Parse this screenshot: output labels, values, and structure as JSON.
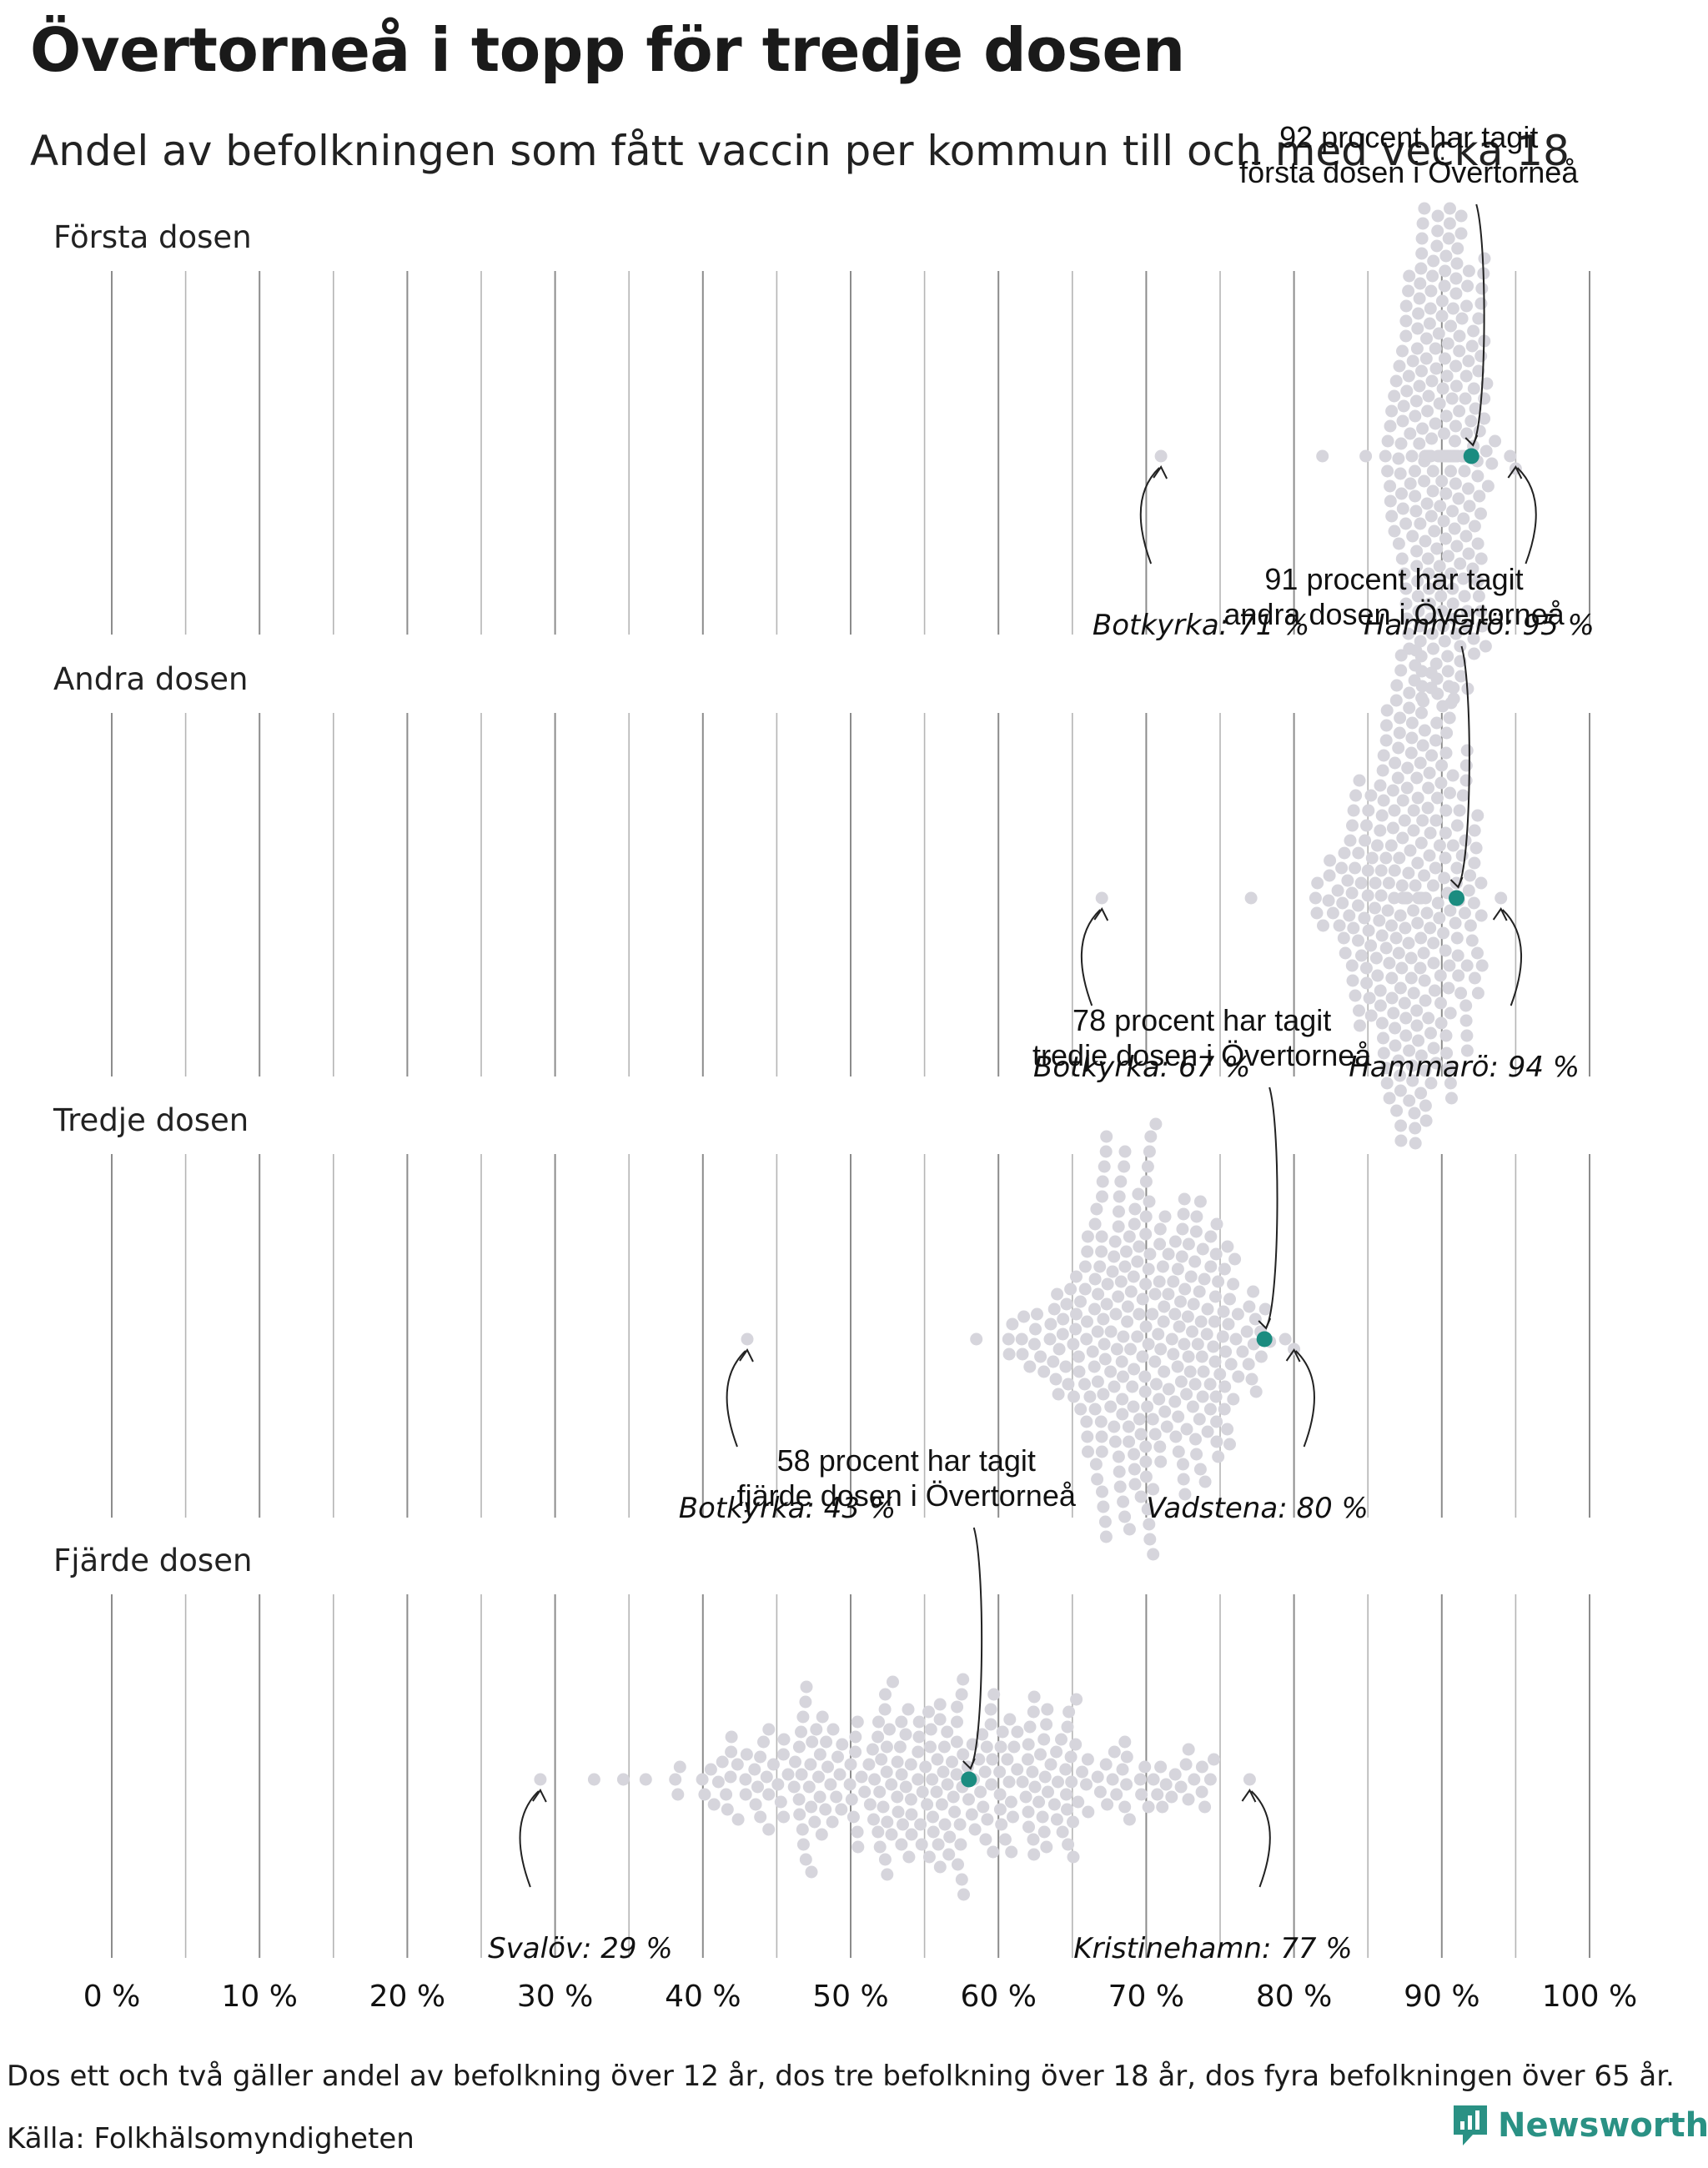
{
  "title": "Övertorneå i topp för tredje dosen",
  "subtitle": "Andel av befolkningen som fått vaccin per kommun till och med vecka 18",
  "footer": {
    "note": "Dos ett och två gäller andel av befolkning över 12 år, dos tre befolkning över 18 år, dos fyra befolkningen över 65 år.",
    "source": "Källa: Folkhälsomyndigheten",
    "brand": "Newsworthy"
  },
  "colors": {
    "dot": "#d6d5dc",
    "highlight": "#1b8c80",
    "grid": "#8a8a8a",
    "brand": "#2a9184"
  },
  "brand_icon": "newsworthy-logo-icon",
  "chart_data": {
    "type": "beeswarm",
    "x_axis": {
      "ticks": [
        0,
        10,
        20,
        30,
        40,
        50,
        60,
        70,
        80,
        90,
        100
      ],
      "tick_labels": [
        "0 %",
        "10 %",
        "20 %",
        "30 %",
        "40 %",
        "50 %",
        "60 %",
        "70 %",
        "80 %",
        "90 %",
        "100 %"
      ],
      "range": [
        0,
        100
      ]
    },
    "grid": true,
    "panels": [
      {
        "name": "Första dosen",
        "highlight": {
          "value": 92,
          "label_lines": [
            "92 procent har tagit",
            "första dosen i Övertorneå"
          ]
        },
        "annotations": [
          {
            "text": "Botkyrka: 71 %",
            "value": 71
          },
          {
            "text": "Hammarö: 95 %",
            "value": 95
          }
        ],
        "distribution": {
          "min": 71,
          "max": 95,
          "center": 90,
          "spread": 2.0,
          "count": 290
        }
      },
      {
        "name": "Andra dosen",
        "highlight": {
          "value": 91,
          "label_lines": [
            "91 procent har tagit",
            "andra dosen i Övertorneå"
          ]
        },
        "annotations": [
          {
            "text": "Botkyrka: 67 %",
            "value": 67
          },
          {
            "text": "Hammarö: 94 %",
            "value": 94
          }
        ],
        "distribution": {
          "min": 67,
          "max": 94,
          "center": 88,
          "spread": 2.6,
          "count": 290
        }
      },
      {
        "name": "Tredje dosen",
        "highlight": {
          "value": 78,
          "label_lines": [
            "78 procent har tagit",
            "tredje dosen i Övertorneå"
          ]
        },
        "annotations": [
          {
            "text": "Botkyrka: 43 %",
            "value": 43
          },
          {
            "text": "Vadstena: 80 %",
            "value": 80
          }
        ],
        "distribution": {
          "min": 43,
          "max": 80,
          "center": 70,
          "spread": 4.0,
          "count": 290
        }
      },
      {
        "name": "Fjärde dosen",
        "highlight": {
          "value": 58,
          "label_lines": [
            "58 procent har tagit",
            "fjärde dosen i Övertorneå"
          ]
        },
        "annotations": [
          {
            "text": "Svalöv: 29 %",
            "value": 29
          },
          {
            "text": "Kristinehamn: 77 %",
            "value": 77
          }
        ],
        "distribution": {
          "min": 29,
          "max": 77,
          "center": 56,
          "spread": 8.5,
          "count": 290
        }
      }
    ]
  }
}
